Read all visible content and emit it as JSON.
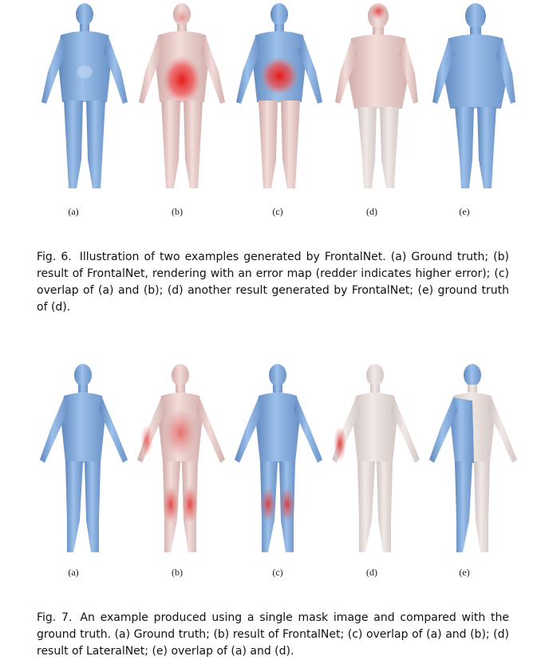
{
  "figure6": {
    "panel_labels": [
      "(a)",
      "(b)",
      "(c)",
      "(d)",
      "(e)"
    ],
    "caption_number": "Fig. 6.",
    "caption_text": "Illustration of two examples generated by FrontalNet. (a) Ground truth; (b) result of FrontalNet, rendering with an error map (redder indicates higher error); (c) overlap of (a) and (b); (d) another result generated by FrontalNet; (e) ground truth of (d)."
  },
  "figure7": {
    "panel_labels": [
      "(a)",
      "(b)",
      "(c)",
      "(d)",
      "(e)"
    ],
    "caption_number": "Fig. 7.",
    "caption_text": "An example produced using a single mask image and compared with the ground truth. (a) Ground truth; (b) result of FrontalNet; (c) overlap of (a) and (b); (d) result of LateralNet; (e) overlap of (a) and (d)."
  },
  "colors": {
    "ground_truth_blue": "#7fa7d6",
    "result_pink": "#e8c9c6",
    "error_red": "#e02020",
    "label_text": "#1a1a1a"
  }
}
